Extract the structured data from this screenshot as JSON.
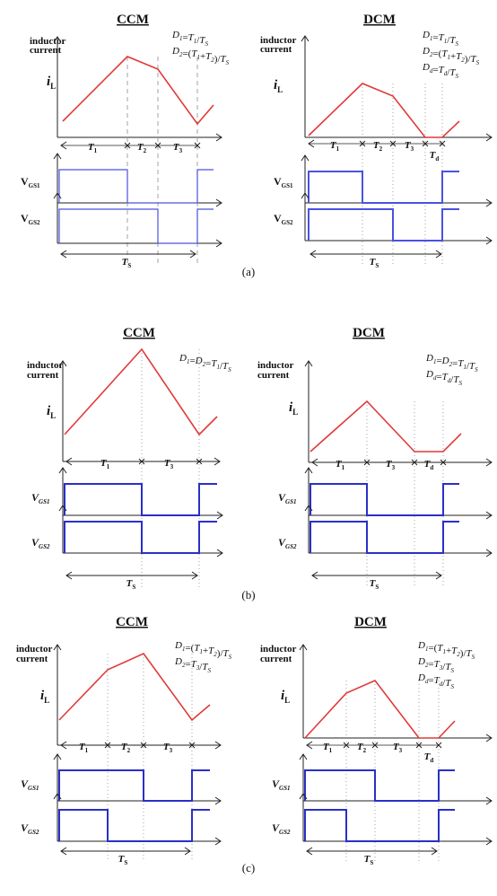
{
  "colors": {
    "current": "#e03a3a",
    "gate_a": "#4a52e0",
    "gate_bc": "#2a2fc8",
    "axis": "#222222",
    "guide": "#9a9a9a",
    "text": "#111111"
  },
  "labels": {
    "ccm": "CCM",
    "dcm": "DCM",
    "ylabel_line1": "inductor",
    "ylabel_line2": "current",
    "iL_main": "i",
    "iL_sub": "L",
    "vgs1_upright": {
      "main": "V",
      "sub": "GS1"
    },
    "vgs2_upright": {
      "main": "V",
      "sub": "GS2"
    },
    "vgs1_italic": {
      "main": "V",
      "sub": "GS1"
    },
    "vgs2_italic": {
      "main": "V",
      "sub": "GS2"
    },
    "ts": {
      "main": "T",
      "sub": "S"
    },
    "t1": {
      "main": "T",
      "sub": "1"
    },
    "t2": {
      "main": "T",
      "sub": "2"
    },
    "t3": {
      "main": "T",
      "sub": "3"
    },
    "td": {
      "main": "T",
      "sub": "d"
    }
  },
  "equations": {
    "a_ccm": [
      [
        [
          "D",
          "i"
        ],
        [
          "1",
          "s"
        ],
        [
          "=",
          "n"
        ],
        [
          "T",
          "i"
        ],
        [
          "1",
          "s"
        ],
        [
          "/",
          "n"
        ],
        [
          "T",
          "i"
        ],
        [
          "S",
          "s"
        ]
      ],
      [
        [
          "D",
          "i"
        ],
        [
          "2",
          "s"
        ],
        [
          "=(",
          "n"
        ],
        [
          "T",
          "i"
        ],
        [
          "1",
          "s"
        ],
        [
          "+",
          "n"
        ],
        [
          "T",
          "i"
        ],
        [
          "2",
          "s"
        ],
        [
          ")/",
          "n"
        ],
        [
          "T",
          "i"
        ],
        [
          "S",
          "s"
        ]
      ]
    ],
    "a_dcm": [
      [
        [
          "D",
          "i"
        ],
        [
          "1",
          "s"
        ],
        [
          "=",
          "n"
        ],
        [
          "T",
          "i"
        ],
        [
          "1",
          "s"
        ],
        [
          "/",
          "n"
        ],
        [
          "T",
          "i"
        ],
        [
          "S",
          "s"
        ]
      ],
      [
        [
          "D",
          "i"
        ],
        [
          "2",
          "s"
        ],
        [
          "=(",
          "n"
        ],
        [
          "T",
          "i"
        ],
        [
          "1",
          "s"
        ],
        [
          "+",
          "n"
        ],
        [
          "T",
          "i"
        ],
        [
          "2",
          "s"
        ],
        [
          ")/",
          "n"
        ],
        [
          "T",
          "i"
        ],
        [
          "S",
          "s"
        ]
      ],
      [
        [
          "D",
          "i"
        ],
        [
          "d",
          "s"
        ],
        [
          "=",
          "n"
        ],
        [
          "T",
          "i"
        ],
        [
          "d",
          "s"
        ],
        [
          "/",
          "n"
        ],
        [
          "T",
          "i"
        ],
        [
          "S",
          "s"
        ]
      ]
    ],
    "b_ccm": [
      [
        [
          "D",
          "i"
        ],
        [
          "1",
          "s"
        ],
        [
          "=",
          "n"
        ],
        [
          "D",
          "i"
        ],
        [
          "2",
          "s"
        ],
        [
          "=",
          "n"
        ],
        [
          "T",
          "i"
        ],
        [
          "1",
          "s"
        ],
        [
          "/",
          "n"
        ],
        [
          "T",
          "i"
        ],
        [
          "S",
          "s"
        ]
      ]
    ],
    "b_dcm": [
      [
        [
          "D",
          "i"
        ],
        [
          "1",
          "s"
        ],
        [
          "=",
          "n"
        ],
        [
          "D",
          "i"
        ],
        [
          "2",
          "s"
        ],
        [
          "=",
          "n"
        ],
        [
          "T",
          "i"
        ],
        [
          "1",
          "s"
        ],
        [
          "/",
          "n"
        ],
        [
          "T",
          "i"
        ],
        [
          "S",
          "s"
        ]
      ],
      [
        [
          "D",
          "i"
        ],
        [
          "d",
          "s"
        ],
        [
          "=",
          "n"
        ],
        [
          "T",
          "i"
        ],
        [
          "d",
          "s"
        ],
        [
          "/",
          "n"
        ],
        [
          "T",
          "i"
        ],
        [
          "S",
          "s"
        ]
      ]
    ],
    "c_ccm": [
      [
        [
          "D",
          "i"
        ],
        [
          "1",
          "s"
        ],
        [
          "=(",
          "n"
        ],
        [
          "T",
          "i"
        ],
        [
          "1",
          "s"
        ],
        [
          "+",
          "n"
        ],
        [
          "T",
          "i"
        ],
        [
          "2",
          "s"
        ],
        [
          ")/",
          "n"
        ],
        [
          "T",
          "i"
        ],
        [
          "S",
          "s"
        ]
      ],
      [
        [
          "D",
          "i"
        ],
        [
          "2",
          "s"
        ],
        [
          "=",
          "n"
        ],
        [
          "T",
          "i"
        ],
        [
          "3",
          "s"
        ],
        [
          "/",
          "n"
        ],
        [
          "T",
          "i"
        ],
        [
          "S",
          "s"
        ]
      ]
    ],
    "c_dcm": [
      [
        [
          "D",
          "i"
        ],
        [
          "1",
          "s"
        ],
        [
          "=(",
          "n"
        ],
        [
          "T",
          "i"
        ],
        [
          "1",
          "s"
        ],
        [
          "+",
          "n"
        ],
        [
          "T",
          "i"
        ],
        [
          "2",
          "s"
        ],
        [
          ")/",
          "n"
        ],
        [
          "T",
          "i"
        ],
        [
          "S",
          "s"
        ]
      ],
      [
        [
          "D",
          "i"
        ],
        [
          "2",
          "s"
        ],
        [
          "=",
          "n"
        ],
        [
          "T",
          "i"
        ],
        [
          "3",
          "s"
        ],
        [
          "/",
          "n"
        ],
        [
          "T",
          "i"
        ],
        [
          "S",
          "s"
        ]
      ],
      [
        [
          "D",
          "i"
        ],
        [
          "d",
          "s"
        ],
        [
          "=",
          "n"
        ],
        [
          "T",
          "i"
        ],
        [
          "d",
          "s"
        ],
        [
          "/",
          "n"
        ],
        [
          "T",
          "i"
        ],
        [
          "S",
          "s"
        ]
      ]
    ]
  },
  "captions": {
    "a": "(a)",
    "b": "(b)",
    "c": "(c)"
  }
}
